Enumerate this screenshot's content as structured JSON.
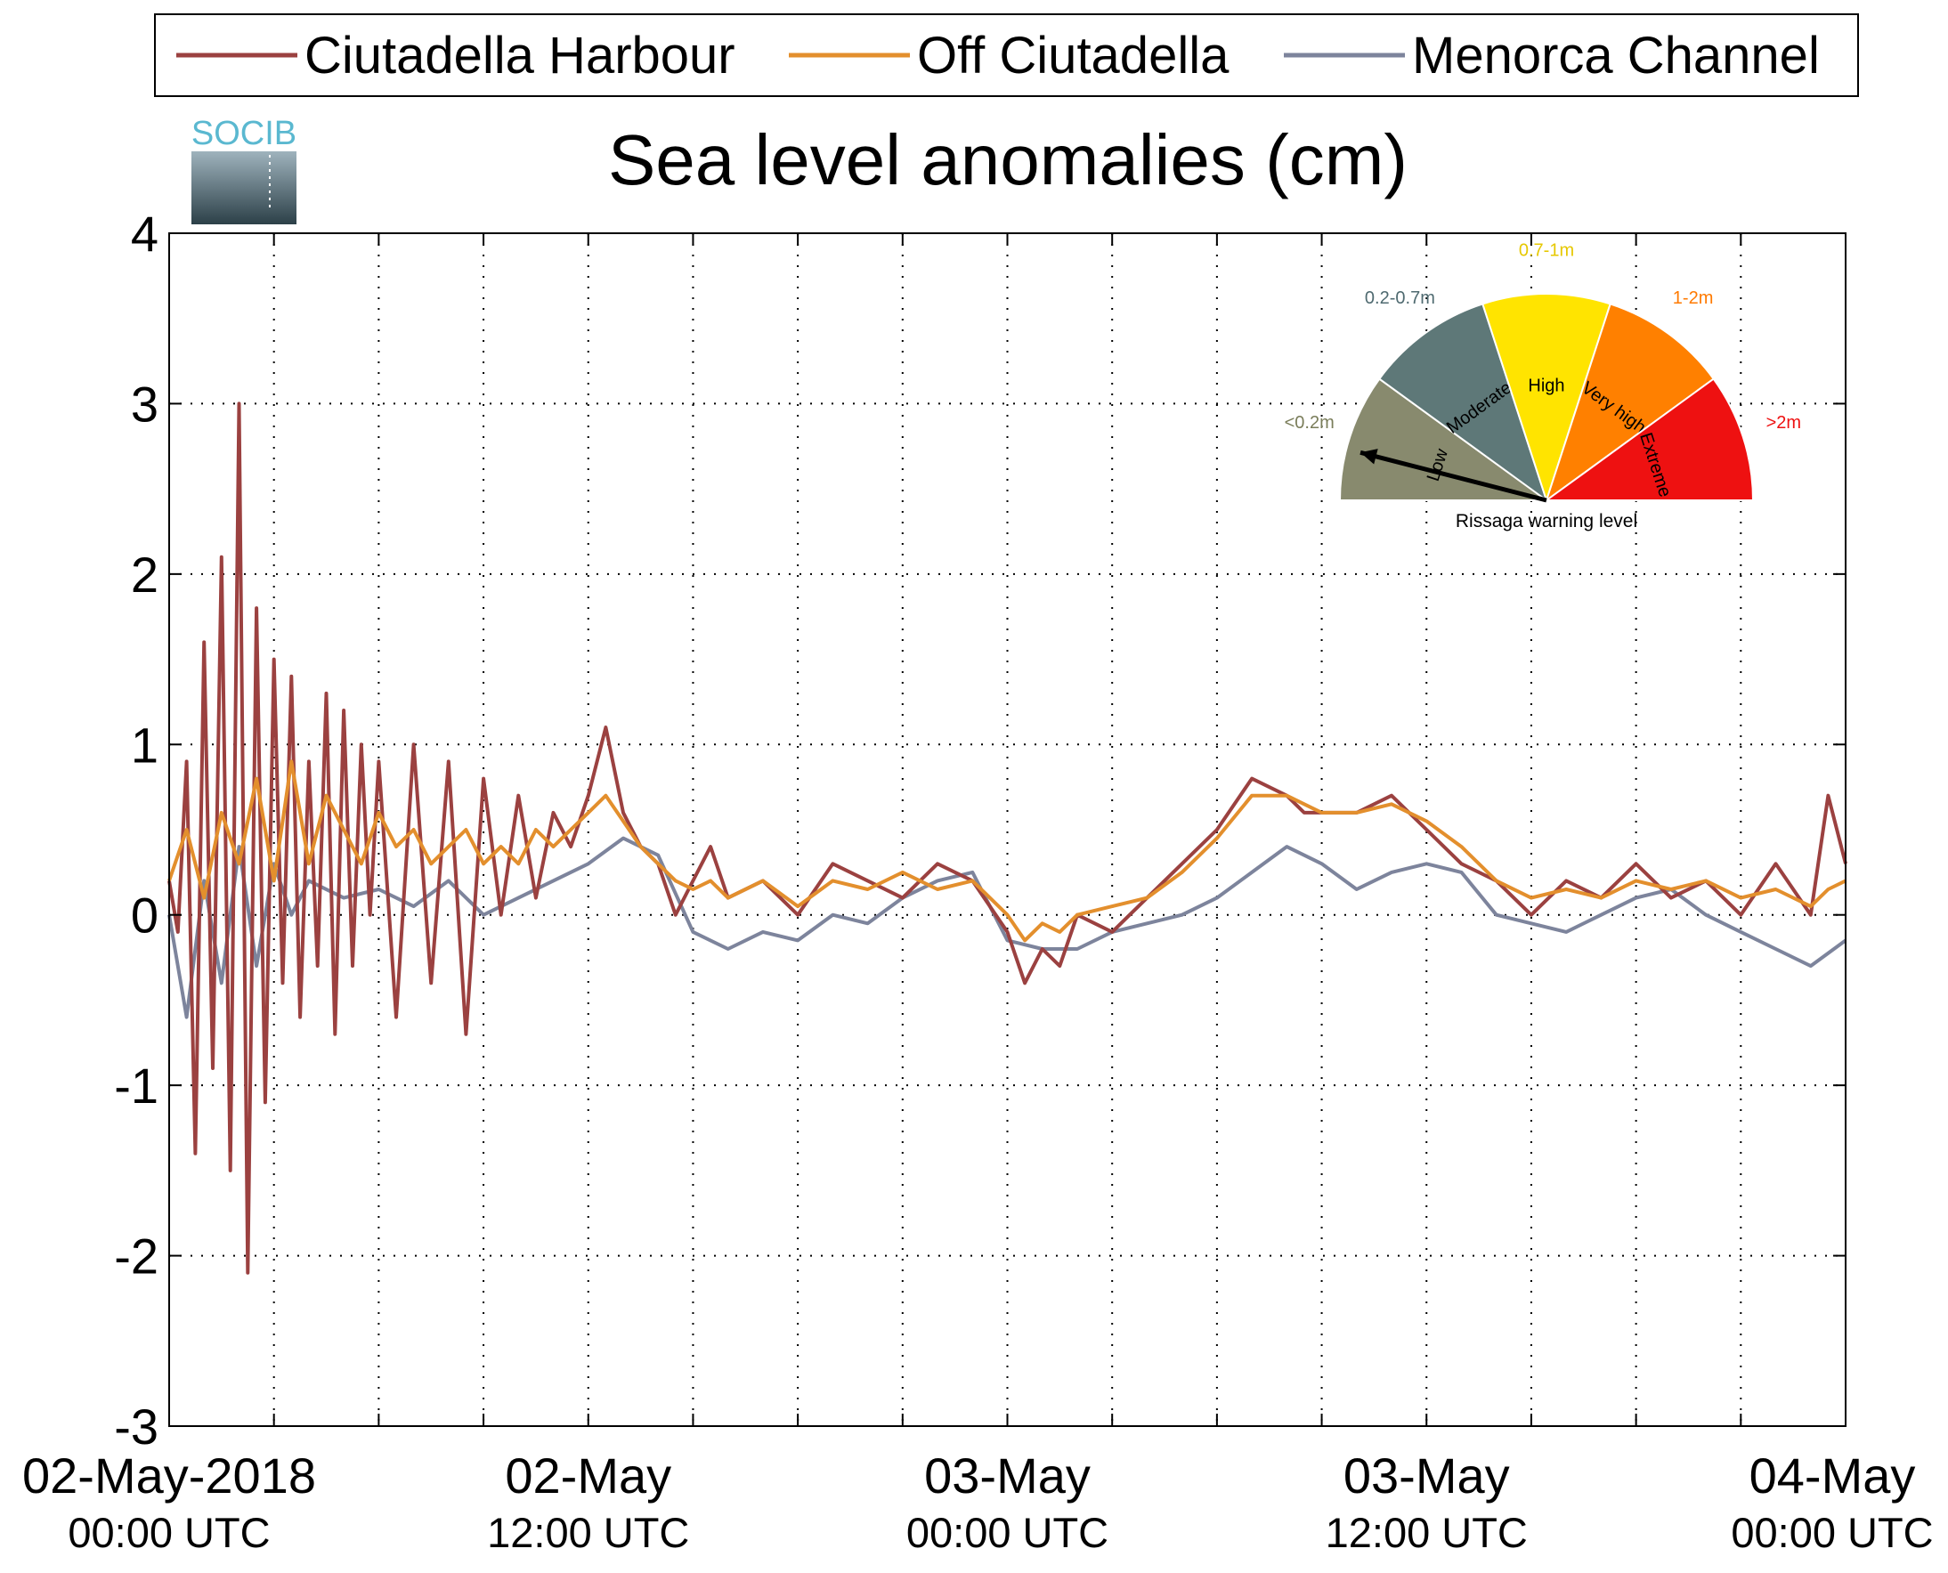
{
  "chart_data": {
    "type": "line",
    "title": "Sea level anomalies (cm)",
    "xlabel": "",
    "ylabel": "",
    "ylim": [
      -3,
      4
    ],
    "yticks": [
      -3,
      -2,
      -1,
      0,
      1,
      2,
      3,
      4
    ],
    "xlim_hours": [
      0,
      48
    ],
    "x_ticks_major": [
      {
        "hour": 0,
        "line1": "02-May-2018",
        "line2": "00:00 UTC"
      },
      {
        "hour": 12,
        "line1": "02-May",
        "line2": "12:00 UTC"
      },
      {
        "hour": 24,
        "line1": "03-May",
        "line2": "00:00 UTC"
      },
      {
        "hour": 36,
        "line1": "03-May",
        "line2": "12:00 UTC"
      },
      {
        "hour": 48,
        "line1": "04-May",
        "line2": "00:00 UTC"
      }
    ],
    "grid": true,
    "legend_position": "top",
    "series": [
      {
        "name": "Ciutadella Harbour",
        "color": "#9b4140",
        "x": [
          0,
          0.25,
          0.5,
          0.75,
          1,
          1.25,
          1.5,
          1.75,
          2,
          2.25,
          2.5,
          2.75,
          3,
          3.25,
          3.5,
          3.75,
          4,
          4.25,
          4.5,
          4.75,
          5,
          5.25,
          5.5,
          5.75,
          6,
          6.5,
          7,
          7.5,
          8,
          8.5,
          9,
          9.5,
          10,
          10.5,
          11,
          11.5,
          12,
          12.5,
          13,
          13.5,
          14,
          14.5,
          15,
          15.5,
          16,
          17,
          18,
          19,
          20,
          21,
          22,
          23,
          24,
          24.5,
          25,
          25.5,
          26,
          27,
          28,
          29,
          30,
          31,
          32,
          32.5,
          33,
          34,
          35,
          36,
          37,
          38,
          39,
          40,
          41,
          42,
          43,
          44,
          45,
          46,
          47,
          47.5,
          48
        ],
        "y": [
          0.2,
          -0.1,
          0.9,
          -1.4,
          1.6,
          -0.9,
          2.1,
          -1.5,
          3.0,
          -2.1,
          1.8,
          -1.1,
          1.5,
          -0.4,
          1.4,
          -0.6,
          0.9,
          -0.3,
          1.3,
          -0.7,
          1.2,
          -0.3,
          1.0,
          0.0,
          0.9,
          -0.6,
          1.0,
          -0.4,
          0.9,
          -0.7,
          0.8,
          0.0,
          0.7,
          0.1,
          0.6,
          0.4,
          0.7,
          1.1,
          0.6,
          0.4,
          0.3,
          0.0,
          0.2,
          0.4,
          0.1,
          0.2,
          0.0,
          0.3,
          0.2,
          0.1,
          0.3,
          0.2,
          -0.1,
          -0.4,
          -0.2,
          -0.3,
          0.0,
          -0.1,
          0.1,
          0.3,
          0.5,
          0.8,
          0.7,
          0.6,
          0.6,
          0.6,
          0.7,
          0.5,
          0.3,
          0.2,
          0.0,
          0.2,
          0.1,
          0.3,
          0.1,
          0.2,
          0.0,
          0.3,
          0.0,
          0.7,
          0.3
        ]
      },
      {
        "name": "Off Ciutadella",
        "color": "#e38f2d",
        "x": [
          0,
          0.5,
          1,
          1.5,
          2,
          2.5,
          3,
          3.5,
          4,
          4.5,
          5,
          5.5,
          6,
          6.5,
          7,
          7.5,
          8,
          8.5,
          9,
          9.5,
          10,
          10.5,
          11,
          11.5,
          12,
          12.5,
          13,
          13.5,
          14,
          14.5,
          15,
          15.5,
          16,
          17,
          18,
          19,
          20,
          21,
          22,
          23,
          24,
          24.5,
          25,
          25.5,
          26,
          27,
          28,
          29,
          30,
          31,
          32,
          32.5,
          33,
          34,
          35,
          36,
          37,
          38,
          39,
          40,
          41,
          42,
          43,
          44,
          45,
          46,
          47,
          47.5,
          48
        ],
        "y": [
          0.2,
          0.5,
          0.1,
          0.6,
          0.3,
          0.8,
          0.2,
          0.9,
          0.3,
          0.7,
          0.5,
          0.3,
          0.6,
          0.4,
          0.5,
          0.3,
          0.4,
          0.5,
          0.3,
          0.4,
          0.3,
          0.5,
          0.4,
          0.5,
          0.6,
          0.7,
          0.55,
          0.4,
          0.3,
          0.2,
          0.15,
          0.2,
          0.1,
          0.2,
          0.05,
          0.2,
          0.15,
          0.25,
          0.15,
          0.2,
          0.0,
          -0.15,
          -0.05,
          -0.1,
          0.0,
          0.05,
          0.1,
          0.25,
          0.45,
          0.7,
          0.7,
          0.65,
          0.6,
          0.6,
          0.65,
          0.55,
          0.4,
          0.2,
          0.1,
          0.15,
          0.1,
          0.2,
          0.15,
          0.2,
          0.1,
          0.15,
          0.05,
          0.15,
          0.2
        ]
      },
      {
        "name": "Menorca Channel",
        "color": "#7d849c",
        "x": [
          0,
          0.5,
          1,
          1.5,
          2,
          2.5,
          3,
          3.5,
          4,
          5,
          6,
          7,
          8,
          9,
          10,
          11,
          12,
          13,
          14,
          15,
          16,
          17,
          18,
          19,
          20,
          21,
          22,
          23,
          24,
          25,
          26,
          27,
          28,
          29,
          30,
          31,
          32,
          33,
          34,
          35,
          36,
          37,
          38,
          39,
          40,
          41,
          42,
          43,
          44,
          45,
          46,
          47,
          48
        ],
        "y": [
          0.0,
          -0.6,
          0.2,
          -0.4,
          0.4,
          -0.3,
          0.3,
          0.0,
          0.2,
          0.1,
          0.15,
          0.05,
          0.2,
          0.0,
          0.1,
          0.2,
          0.3,
          0.45,
          0.35,
          -0.1,
          -0.2,
          -0.1,
          -0.15,
          0.0,
          -0.05,
          0.1,
          0.2,
          0.25,
          -0.15,
          -0.2,
          -0.2,
          -0.1,
          -0.05,
          0.0,
          0.1,
          0.25,
          0.4,
          0.3,
          0.15,
          0.25,
          0.3,
          0.25,
          0.0,
          -0.05,
          -0.1,
          0.0,
          0.1,
          0.15,
          0.0,
          -0.1,
          -0.2,
          -0.3,
          -0.15
        ]
      }
    ]
  },
  "logo": {
    "text": "SOCIB"
  },
  "gauge": {
    "footer": "Rissaga warning level",
    "segments": [
      {
        "label": "Low",
        "range": "<0.2m",
        "color": "#888a6e",
        "text_color": "#7a7d5a"
      },
      {
        "label": "Moderate",
        "range": "0.2-0.7m",
        "color": "#5e7878",
        "text_color": "#4f6a70"
      },
      {
        "label": "High",
        "range": "0.7-1m",
        "color": "#ffe400",
        "text_color": "#e6c800"
      },
      {
        "label": "Very high",
        "range": "1-2m",
        "color": "#ff8000",
        "text_color": "#ff7a00"
      },
      {
        "label": "Extreme",
        "range": ">2m",
        "color": "#ee1111",
        "text_color": "#ee1111"
      }
    ],
    "needle_level": "Low"
  }
}
